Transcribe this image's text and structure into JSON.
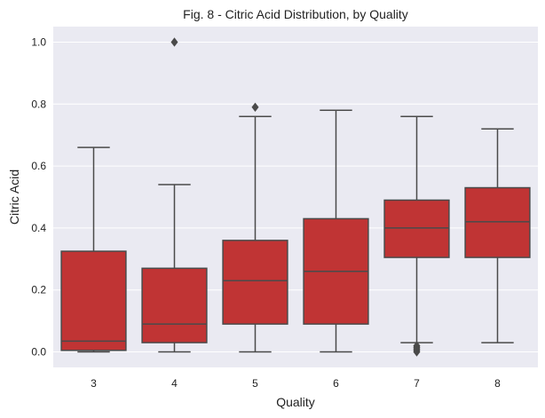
{
  "chart_data": {
    "type": "box",
    "title": "Fig. 8 - Citric Acid Distribution, by Quality",
    "xlabel": "Quality",
    "ylabel": "Citric Acid",
    "categories": [
      "3",
      "4",
      "5",
      "6",
      "7",
      "8"
    ],
    "ylim": [
      -0.05,
      1.05
    ],
    "yticks": [
      "0.0",
      "0.2",
      "0.4",
      "0.6",
      "0.8",
      "1.0"
    ],
    "grid": true,
    "background_color": "#eaeaf2",
    "box_color": "#c03434",
    "line_color": "#4a4a4a",
    "boxes": [
      {
        "category": "3",
        "whisker_low": 0.0,
        "q1": 0.005,
        "median": 0.035,
        "q3": 0.325,
        "whisker_high": 0.66,
        "outliers": []
      },
      {
        "category": "4",
        "whisker_low": 0.0,
        "q1": 0.03,
        "median": 0.09,
        "q3": 0.27,
        "whisker_high": 0.54,
        "outliers": [
          1.0
        ]
      },
      {
        "category": "5",
        "whisker_low": 0.0,
        "q1": 0.09,
        "median": 0.23,
        "q3": 0.36,
        "whisker_high": 0.76,
        "outliers": [
          0.79
        ]
      },
      {
        "category": "6",
        "whisker_low": 0.0,
        "q1": 0.09,
        "median": 0.26,
        "q3": 0.43,
        "whisker_high": 0.78,
        "outliers": []
      },
      {
        "category": "7",
        "whisker_low": 0.03,
        "q1": 0.305,
        "median": 0.4,
        "q3": 0.49,
        "whisker_high": 0.76,
        "outliers": [
          0.0,
          0.005,
          0.01,
          0.015,
          0.02
        ]
      },
      {
        "category": "8",
        "whisker_low": 0.03,
        "q1": 0.305,
        "median": 0.42,
        "q3": 0.53,
        "whisker_high": 0.72,
        "outliers": []
      }
    ]
  }
}
